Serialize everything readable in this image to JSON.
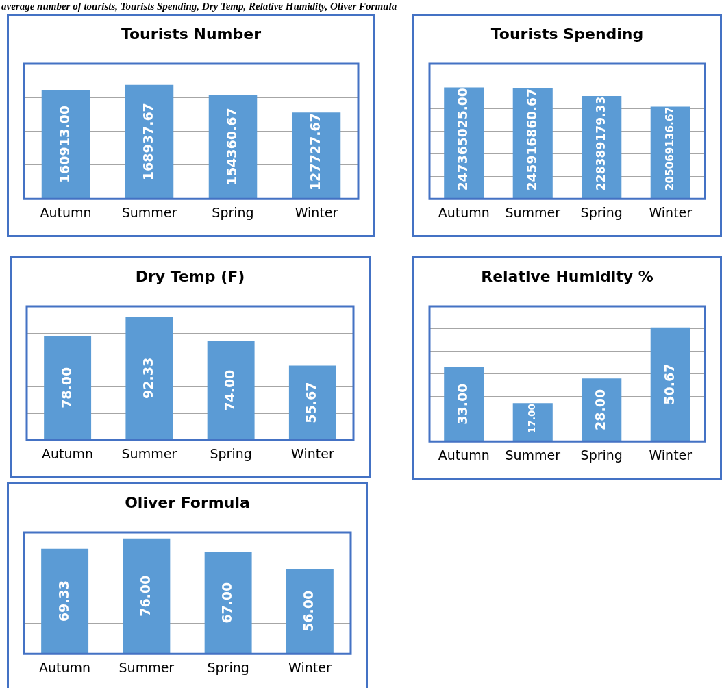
{
  "chart_data": [
    {
      "type": "bar",
      "title": "Tourists Number",
      "annotations": [
        "average number of tourists, Tourists Spending, Dry Temp, Relative Humidity, Oliver Formula"
      ],
      "categories": [
        "Autumn",
        "Summer",
        "Spring",
        "Winter"
      ],
      "values": [
        160913.0,
        168937.67,
        154360.67,
        127727.67
      ],
      "value_labels": [
        "160913.00",
        "168937.67",
        "154360.67",
        "127727.67"
      ],
      "color": "#5b9bd5",
      "ylim": [
        0,
        200000
      ],
      "yticks": [
        {
          "value": 0,
          "label": null
        },
        {
          "value": 50000,
          "label": null
        },
        {
          "value": 100000,
          "label": null
        },
        {
          "value": 150000,
          "label": null
        },
        {
          "value": 200000,
          "label": null
        }
      ],
      "tick_labels": "x",
      "grid": "y"
    },
    {
      "type": "bar",
      "title": "Tourists Spending",
      "categories": [
        "Autumn",
        "Summer",
        "Spring",
        "Winter"
      ],
      "values": [
        247365025.0,
        245916860.67,
        228389179.33,
        205069136.67
      ],
      "value_labels": [
        "247365025.00",
        "245916860.67",
        "228389179.33",
        "205069136.67"
      ],
      "color": "#5b9bd5",
      "ylim": [
        0,
        300000000
      ],
      "yticks": [
        {
          "value": 0,
          "label": null
        },
        {
          "value": 50000000,
          "label": null
        },
        {
          "value": 100000000,
          "label": null
        },
        {
          "value": 150000000,
          "label": null
        },
        {
          "value": 200000000,
          "label": null
        },
        {
          "value": 250000000,
          "label": null
        },
        {
          "value": 300000000,
          "label": null
        }
      ],
      "tick_labels": "x",
      "grid": "y"
    },
    {
      "type": "bar",
      "title": "Dry Temp (F)",
      "categories": [
        "Autumn",
        "Summer",
        "Spring",
        "Winter"
      ],
      "values": [
        78.0,
        92.33,
        74.0,
        55.67
      ],
      "value_labels": [
        "78.00",
        "92.33",
        "74.00",
        "55.67"
      ],
      "color": "#5b9bd5",
      "ylim": [
        0,
        100
      ],
      "yticks": [
        {
          "value": 0,
          "label": null
        },
        {
          "value": 20,
          "label": null
        },
        {
          "value": 40,
          "label": null
        },
        {
          "value": 60,
          "label": null
        },
        {
          "value": 80,
          "label": null
        },
        {
          "value": 100,
          "label": null
        }
      ],
      "tick_labels": "x",
      "grid": "y"
    },
    {
      "type": "bar",
      "title": "Relative Humidity %",
      "categories": [
        "Autumn",
        "Summer",
        "Spring",
        "Winter"
      ],
      "values": [
        33.0,
        17.0,
        28.0,
        50.67
      ],
      "value_labels": [
        "33.00",
        "17.00",
        "28.00",
        "50.67"
      ],
      "color": "#5b9bd5",
      "ylim": [
        0,
        60
      ],
      "yticks": [
        {
          "value": 0,
          "label": null
        },
        {
          "value": 10,
          "label": null
        },
        {
          "value": 20,
          "label": null
        },
        {
          "value": 30,
          "label": null
        },
        {
          "value": 40,
          "label": null
        },
        {
          "value": 50,
          "label": null
        },
        {
          "value": 60,
          "label": null
        }
      ],
      "tick_labels": "x",
      "grid": "y"
    },
    {
      "type": "bar",
      "title": "Oliver Formula",
      "categories": [
        "Autumn",
        "Summer",
        "Spring",
        "Winter"
      ],
      "values": [
        69.33,
        76.0,
        67.0,
        56.0
      ],
      "value_labels": [
        "69.33",
        "76.00",
        "67.00",
        "56.00"
      ],
      "color": "#5b9bd5",
      "ylim": [
        0,
        80
      ],
      "yticks": [
        {
          "value": 0,
          "label": null
        },
        {
          "value": 20,
          "label": null
        },
        {
          "value": 40,
          "label": null
        },
        {
          "value": 60,
          "label": null
        },
        {
          "value": 80,
          "label": null
        }
      ],
      "tick_labels": "x",
      "grid": "y"
    }
  ]
}
